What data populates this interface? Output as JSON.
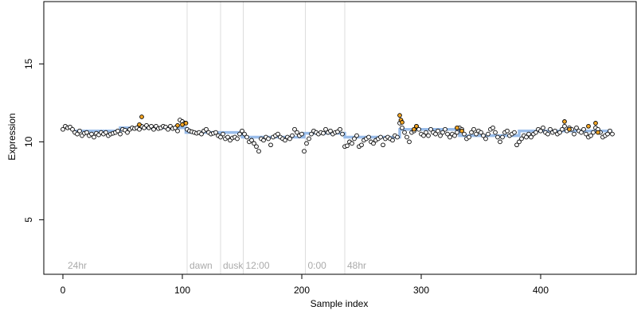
{
  "chart_data": {
    "type": "scatter",
    "title": "",
    "xlabel": "Sample index",
    "ylabel": "Expression",
    "xlim": [
      -16,
      480
    ],
    "ylim": [
      1.5,
      19
    ],
    "xticks": [
      0,
      100,
      200,
      300,
      400
    ],
    "yticks": [
      5,
      10,
      15
    ],
    "grid": false,
    "legend": "none",
    "colors": {
      "default_point": "#ffffff",
      "highlight_point": "#f5a623",
      "trend_line": "#8fb6e8",
      "marker_line": "#dddddd",
      "marker_text": "#aaaaaa"
    },
    "markers": [
      {
        "x": 2,
        "label": "24hr"
      },
      {
        "x": 104,
        "label": "dawn"
      },
      {
        "x": 132,
        "label": "dusk"
      },
      {
        "x": 151,
        "label": "12:00"
      },
      {
        "x": 203,
        "label": "0:00"
      },
      {
        "x": 236,
        "label": "48hr"
      }
    ],
    "trend": [
      {
        "x": 10,
        "y": 10.7
      },
      {
        "x": 48,
        "y": 10.7
      },
      {
        "x": 48,
        "y": 10.9
      },
      {
        "x": 103,
        "y": 10.9
      },
      {
        "x": 103,
        "y": 10.6
      },
      {
        "x": 150,
        "y": 10.6
      },
      {
        "x": 150,
        "y": 10.3
      },
      {
        "x": 202,
        "y": 10.3
      },
      {
        "x": 202,
        "y": 10.55
      },
      {
        "x": 236,
        "y": 10.55
      },
      {
        "x": 236,
        "y": 10.3
      },
      {
        "x": 282,
        "y": 10.3
      },
      {
        "x": 282,
        "y": 10.8
      },
      {
        "x": 332,
        "y": 10.8
      },
      {
        "x": 332,
        "y": 10.4
      },
      {
        "x": 382,
        "y": 10.4
      },
      {
        "x": 382,
        "y": 10.7
      },
      {
        "x": 460,
        "y": 10.7
      }
    ],
    "series": [
      {
        "points": [
          [
            0,
            10.8
          ],
          [
            2,
            11.0
          ],
          [
            4,
            10.9
          ],
          [
            6,
            10.95
          ],
          [
            8,
            10.8
          ],
          [
            10,
            10.6
          ],
          [
            12,
            10.5
          ],
          [
            14,
            10.7
          ],
          [
            16,
            10.4
          ],
          [
            18,
            10.55
          ],
          [
            20,
            10.6
          ],
          [
            22,
            10.4
          ],
          [
            24,
            10.5
          ],
          [
            26,
            10.3
          ],
          [
            28,
            10.55
          ],
          [
            30,
            10.45
          ],
          [
            32,
            10.6
          ],
          [
            34,
            10.5
          ],
          [
            36,
            10.6
          ],
          [
            38,
            10.4
          ],
          [
            40,
            10.5
          ],
          [
            42,
            10.55
          ],
          [
            44,
            10.6
          ],
          [
            46,
            10.7
          ],
          [
            48,
            10.5
          ],
          [
            50,
            10.8
          ],
          [
            52,
            10.75
          ],
          [
            54,
            10.6
          ],
          [
            56,
            10.8
          ],
          [
            58,
            10.9
          ],
          [
            60,
            10.85
          ],
          [
            62,
            10.9
          ],
          [
            64,
            10.8
          ],
          [
            66,
            11.0
          ],
          [
            68,
            10.9
          ],
          [
            70,
            11.05
          ],
          [
            72,
            10.9
          ],
          [
            74,
            11.0
          ],
          [
            76,
            10.8
          ],
          [
            78,
            11.0
          ],
          [
            80,
            10.85
          ],
          [
            82,
            10.9
          ],
          [
            84,
            11.0
          ],
          [
            86,
            10.95
          ],
          [
            88,
            10.8
          ],
          [
            90,
            11.0
          ],
          [
            92,
            10.85
          ],
          [
            94,
            10.9
          ],
          [
            96,
            10.7
          ],
          [
            98,
            11.4
          ],
          [
            100,
            11.3
          ],
          [
            102,
            11.2
          ],
          [
            104,
            10.8
          ],
          [
            106,
            10.7
          ],
          [
            108,
            10.65
          ],
          [
            110,
            10.6
          ],
          [
            112,
            10.55
          ],
          [
            114,
            10.6
          ],
          [
            116,
            10.5
          ],
          [
            118,
            10.7
          ],
          [
            120,
            10.8
          ],
          [
            122,
            10.6
          ],
          [
            124,
            10.5
          ],
          [
            126,
            10.55
          ],
          [
            128,
            10.6
          ],
          [
            130,
            10.4
          ],
          [
            132,
            10.3
          ],
          [
            134,
            10.5
          ],
          [
            136,
            10.2
          ],
          [
            138,
            10.3
          ],
          [
            140,
            10.1
          ],
          [
            142,
            10.25
          ],
          [
            144,
            10.3
          ],
          [
            146,
            10.2
          ],
          [
            148,
            10.5
          ],
          [
            150,
            10.7
          ],
          [
            152,
            10.5
          ],
          [
            154,
            10.3
          ],
          [
            156,
            10.0
          ],
          [
            158,
            10.1
          ],
          [
            160,
            9.9
          ],
          [
            162,
            9.7
          ],
          [
            164,
            9.4
          ],
          [
            166,
            10.2
          ],
          [
            168,
            10.1
          ],
          [
            170,
            10.3
          ],
          [
            172,
            10.2
          ],
          [
            174,
            9.8
          ],
          [
            176,
            10.3
          ],
          [
            178,
            10.4
          ],
          [
            180,
            10.5
          ],
          [
            182,
            10.3
          ],
          [
            184,
            10.2
          ],
          [
            186,
            10.1
          ],
          [
            188,
            10.3
          ],
          [
            190,
            10.2
          ],
          [
            192,
            10.4
          ],
          [
            194,
            10.8
          ],
          [
            196,
            10.6
          ],
          [
            198,
            10.4
          ],
          [
            200,
            10.5
          ],
          [
            202,
            9.4
          ],
          [
            204,
            9.9
          ],
          [
            206,
            10.2
          ],
          [
            208,
            10.5
          ],
          [
            210,
            10.7
          ],
          [
            212,
            10.6
          ],
          [
            214,
            10.5
          ],
          [
            216,
            10.6
          ],
          [
            218,
            10.55
          ],
          [
            220,
            10.8
          ],
          [
            222,
            10.6
          ],
          [
            224,
            10.7
          ],
          [
            226,
            10.5
          ],
          [
            228,
            10.6
          ],
          [
            230,
            10.65
          ],
          [
            232,
            10.8
          ],
          [
            234,
            10.5
          ],
          [
            236,
            9.7
          ],
          [
            238,
            9.75
          ],
          [
            240,
            10.0
          ],
          [
            242,
            9.9
          ],
          [
            244,
            10.2
          ],
          [
            246,
            10.4
          ],
          [
            248,
            9.7
          ],
          [
            250,
            9.8
          ],
          [
            252,
            10.1
          ],
          [
            254,
            10.2
          ],
          [
            256,
            10.3
          ],
          [
            258,
            10.0
          ],
          [
            260,
            9.9
          ],
          [
            262,
            10.1
          ],
          [
            264,
            10.2
          ],
          [
            266,
            10.3
          ],
          [
            268,
            9.8
          ],
          [
            270,
            10.2
          ],
          [
            272,
            10.3
          ],
          [
            274,
            10.2
          ],
          [
            276,
            10.1
          ],
          [
            278,
            10.4
          ],
          [
            280,
            10.3
          ],
          [
            282,
            11.2
          ],
          [
            284,
            10.9
          ],
          [
            286,
            10.6
          ],
          [
            288,
            10.3
          ],
          [
            290,
            10.0
          ],
          [
            292,
            10.6
          ],
          [
            294,
            10.7
          ],
          [
            296,
            11.0
          ],
          [
            298,
            10.8
          ],
          [
            300,
            10.5
          ],
          [
            302,
            10.4
          ],
          [
            304,
            10.6
          ],
          [
            306,
            10.4
          ],
          [
            308,
            10.8
          ],
          [
            310,
            10.6
          ],
          [
            312,
            10.5
          ],
          [
            314,
            10.7
          ],
          [
            316,
            10.4
          ],
          [
            318,
            10.6
          ],
          [
            320,
            10.8
          ],
          [
            322,
            10.5
          ],
          [
            324,
            10.3
          ],
          [
            326,
            10.5
          ],
          [
            328,
            10.4
          ],
          [
            330,
            10.6
          ],
          [
            332,
            10.9
          ],
          [
            334,
            10.8
          ],
          [
            336,
            10.5
          ],
          [
            338,
            10.2
          ],
          [
            340,
            10.3
          ],
          [
            342,
            10.6
          ],
          [
            344,
            10.8
          ],
          [
            346,
            10.5
          ],
          [
            348,
            10.7
          ],
          [
            350,
            10.6
          ],
          [
            352,
            10.4
          ],
          [
            354,
            10.2
          ],
          [
            356,
            10.5
          ],
          [
            358,
            10.8
          ],
          [
            360,
            10.9
          ],
          [
            362,
            10.6
          ],
          [
            364,
            10.3
          ],
          [
            366,
            10.0
          ],
          [
            368,
            10.3
          ],
          [
            370,
            10.6
          ],
          [
            372,
            10.7
          ],
          [
            374,
            10.4
          ],
          [
            376,
            10.5
          ],
          [
            378,
            10.6
          ],
          [
            380,
            9.8
          ],
          [
            382,
            10.0
          ],
          [
            384,
            10.2
          ],
          [
            386,
            10.4
          ],
          [
            388,
            10.3
          ],
          [
            390,
            10.5
          ],
          [
            392,
            10.3
          ],
          [
            394,
            10.5
          ],
          [
            396,
            10.6
          ],
          [
            398,
            10.8
          ],
          [
            400,
            10.7
          ],
          [
            402,
            10.9
          ],
          [
            404,
            10.6
          ],
          [
            406,
            10.5
          ],
          [
            408,
            10.8
          ],
          [
            410,
            10.6
          ],
          [
            412,
            10.7
          ],
          [
            414,
            10.5
          ],
          [
            416,
            10.6
          ],
          [
            418,
            10.8
          ],
          [
            420,
            11.0
          ],
          [
            422,
            10.7
          ],
          [
            424,
            10.9
          ],
          [
            426,
            10.8
          ],
          [
            428,
            10.5
          ],
          [
            430,
            10.9
          ],
          [
            432,
            10.7
          ],
          [
            434,
            10.6
          ],
          [
            436,
            10.8
          ],
          [
            438,
            10.5
          ],
          [
            440,
            10.3
          ],
          [
            442,
            10.4
          ],
          [
            444,
            10.6
          ],
          [
            446,
            10.9
          ],
          [
            448,
            10.8
          ],
          [
            450,
            10.6
          ],
          [
            452,
            10.3
          ],
          [
            454,
            10.4
          ],
          [
            456,
            10.5
          ],
          [
            458,
            10.7
          ],
          [
            460,
            10.5
          ]
        ]
      },
      {
        "highlight": true,
        "points": [
          [
            66,
            11.6
          ],
          [
            64,
            11.1
          ],
          [
            96,
            11.05
          ],
          [
            100,
            11.1
          ],
          [
            103,
            11.2
          ],
          [
            282,
            11.7
          ],
          [
            283,
            11.4
          ],
          [
            284,
            11.25
          ],
          [
            294,
            10.8
          ],
          [
            296,
            11.0
          ],
          [
            330,
            10.9
          ],
          [
            334,
            10.7
          ],
          [
            420,
            11.3
          ],
          [
            424,
            10.8
          ],
          [
            440,
            11.0
          ],
          [
            446,
            11.2
          ],
          [
            448,
            10.6
          ]
        ]
      }
    ]
  }
}
